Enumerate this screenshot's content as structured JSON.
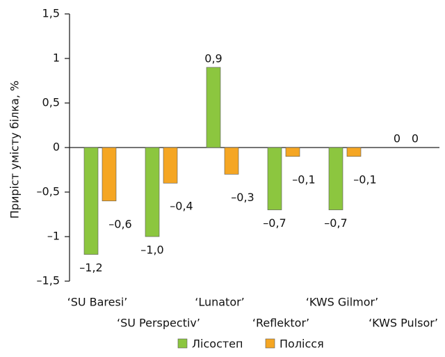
{
  "chart_data": {
    "type": "bar",
    "y_label": "Приріст умісту білка, %",
    "categories": [
      "‘SU Baresi’",
      "‘SU Perspectiv’",
      "‘Lunator’",
      "‘Reflektor’",
      "‘KWS Gilmor’",
      "‘KWS Pulsor’"
    ],
    "series": [
      {
        "name": "Лісостеп",
        "color": "#8cc63f",
        "values": [
          -1.2,
          -1.0,
          0.9,
          -0.7,
          -0.7,
          0
        ],
        "value_labels": [
          "–1,2",
          "–1,0",
          "0,9",
          "–0,7",
          "–0,7",
          "0"
        ]
      },
      {
        "name": "Полісся",
        "color": "#f5a623",
        "values": [
          -0.6,
          -0.4,
          -0.3,
          -0.1,
          -0.1,
          0
        ],
        "value_labels": [
          "–0,6",
          "–0,4",
          "–0,3",
          "–0,1",
          "–0,1",
          "0"
        ]
      }
    ],
    "ylim": [
      -1.5,
      1.5
    ],
    "yticks": [
      {
        "value": 1.5,
        "label": "1,5"
      },
      1,
      {
        "value": 0.5,
        "label": "0,5"
      },
      0,
      {
        "value": -0.5,
        "label": "–0,5"
      },
      {
        "value": -1,
        "label": "–1"
      },
      {
        "value": -1.5,
        "label": "–1,5"
      }
    ],
    "legend": "bottom"
  }
}
